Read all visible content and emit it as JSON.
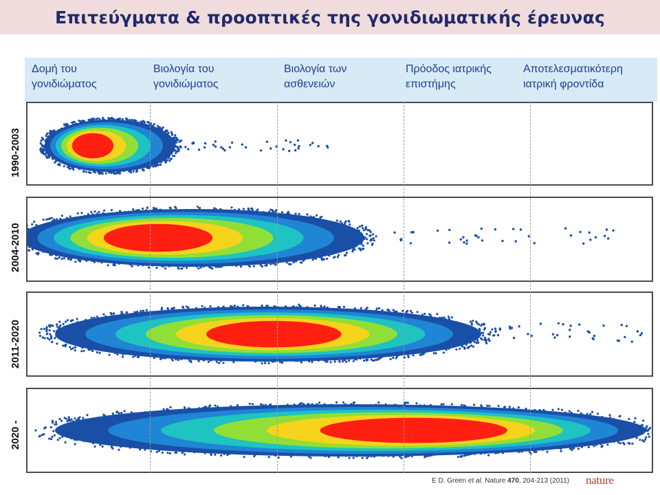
{
  "title": "Επιτεύγματα & προοπτικές της γονιδιωματικής έρευνας",
  "columns": [
    {
      "label": "Δομή του\nγονιδιώματος"
    },
    {
      "label": "Βιολογία του\nγονιδιώματος"
    },
    {
      "label": "Βιολογία των\nασθενειών"
    },
    {
      "label": "Πρόοδος ιατρικής\nεπιστήμης"
    },
    {
      "label": "Αποτελεσματικότερη\nιατρική φροντίδα"
    }
  ],
  "periods": [
    {
      "label": "1990-2003"
    },
    {
      "label": "2004-2010"
    },
    {
      "label": "2011-2020"
    },
    {
      "label": "2020 -"
    }
  ],
  "citation": {
    "author": "E D. Green ",
    "etal": "et al.",
    "journal": " Nature ",
    "volume": "470",
    "pages": ", 204-213 (2011)"
  },
  "logo_text": "nature",
  "colors": {
    "title": "#1f2a6b",
    "column_text": "#1f3f8f",
    "header_band": "#d7eaf6",
    "title_band": "#f0dcdc",
    "gradient": [
      "#ff1010",
      "#ffd21a",
      "#9be22a",
      "#1ec9c0",
      "#1f8ad8",
      "#1a4fa8"
    ]
  }
}
